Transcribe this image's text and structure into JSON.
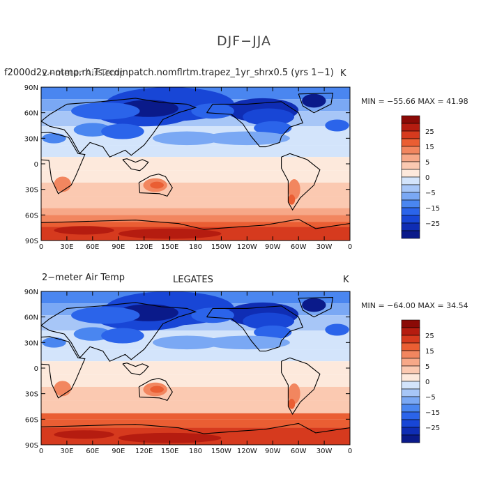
{
  "title": "DJF−JJA",
  "colors": [
    "#0a1a8a",
    "#0f2db4",
    "#1846d6",
    "#2b64ea",
    "#4a86f0",
    "#7aa8f4",
    "#a7c6f7",
    "#d3e4fb",
    "#fde9dc",
    "#fbc9b1",
    "#f7a888",
    "#f2865f",
    "#ea5e33",
    "#d63a1e",
    "#b51c10",
    "#8b0a06"
  ],
  "colorbar_labels": [
    "25",
    "15",
    "5",
    "0",
    "−5",
    "−15",
    "−25"
  ],
  "x_ticks": [
    "0",
    "30E",
    "60E",
    "90E",
    "120E",
    "150E",
    "180",
    "150W",
    "120W",
    "90W",
    "60W",
    "30W",
    "0"
  ],
  "y_ticks": [
    "90N",
    "60N",
    "30N",
    "0",
    "30S",
    "60S",
    "90S"
  ],
  "panels": [
    {
      "left_title": "f2000d2v.notmp.rh.Ts.rcdinpatch.nomflrtm.trapez_1yr_shrx0.5 (yrs 1−1)",
      "left_title_overlay": "2−meter Air Temp",
      "center_title": "",
      "right_title": "K",
      "minmax": "MIN = −55.66  MAX =   41.98"
    },
    {
      "left_title": "2−meter Air Temp",
      "left_title_overlay": "",
      "center_title": "LEGATES",
      "right_title": "K",
      "minmax": "MIN = −64.00  MAX =   34.54"
    }
  ],
  "chart_data": [
    {
      "type": "heatmap",
      "title": "DJF−JJA",
      "subtitle": "f2000d2v.notmp.rh.Ts.rcdinpatch.nomflrtm.trapez_1yr_shrx0.5 (yrs 1−1)",
      "variable": "2−meter Air Temp",
      "units": "K",
      "xlim": [
        0,
        360
      ],
      "ylim": [
        -90,
        90
      ],
      "min": -55.66,
      "max": 41.98,
      "contour_levels": [
        -30,
        -25,
        -20,
        -15,
        -10,
        -5,
        0,
        5,
        10,
        15,
        20,
        25,
        30
      ],
      "legend_position": "right"
    },
    {
      "type": "heatmap",
      "title": "LEGATES",
      "variable": "2−meter Air Temp",
      "units": "K",
      "xlim": [
        0,
        360
      ],
      "ylim": [
        -90,
        90
      ],
      "min": -64.0,
      "max": 34.54,
      "contour_levels": [
        -30,
        -25,
        -20,
        -15,
        -10,
        -5,
        0,
        5,
        10,
        15,
        20,
        25,
        30
      ],
      "legend_position": "right"
    }
  ]
}
